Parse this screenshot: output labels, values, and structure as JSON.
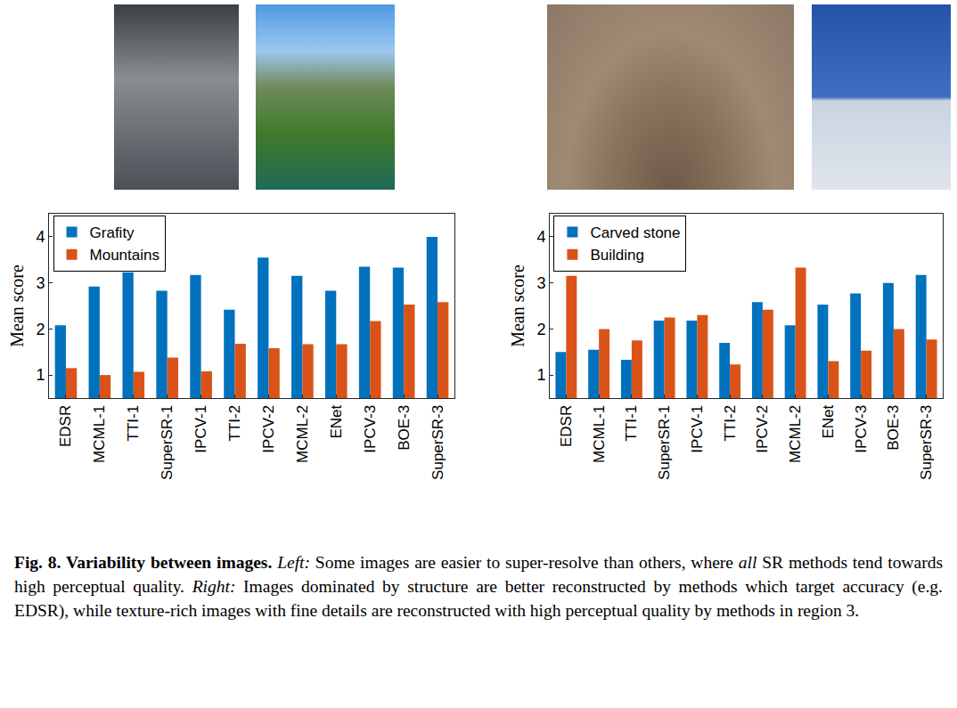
{
  "chart_data": [
    {
      "type": "bar",
      "y_label": "Mean score",
      "categories": [
        "EDSR",
        "MCML-1",
        "TTI-1",
        "SuperSR-1",
        "IPCV-1",
        "TTI-2",
        "IPCV-2",
        "MCML-2",
        "ENet",
        "IPCV-3",
        "BOE-3",
        "SuperSR-3"
      ],
      "series": [
        {
          "name": "Grafity",
          "color": "#0072bd",
          "values": [
            2.08,
            2.92,
            3.23,
            2.83,
            3.17,
            2.42,
            3.55,
            3.15,
            2.83,
            3.35,
            3.33,
            4.0
          ]
        },
        {
          "name": "Mountains",
          "color": "#d95319",
          "values": [
            1.15,
            1.0,
            1.07,
            1.38,
            1.08,
            1.68,
            1.58,
            1.67,
            1.67,
            2.17,
            2.53,
            2.58
          ]
        }
      ],
      "ylim": [
        0.5,
        4.5
      ],
      "yticks": [
        1,
        2,
        3,
        4
      ],
      "grid": false,
      "legend": "upper left"
    },
    {
      "type": "bar",
      "y_label": "Mean score",
      "categories": [
        "EDSR",
        "MCML-1",
        "TTI-1",
        "SuperSR-1",
        "IPCV-1",
        "TTI-2",
        "IPCV-2",
        "MCML-2",
        "ENet",
        "IPCV-3",
        "BOE-3",
        "SuperSR-3"
      ],
      "series": [
        {
          "name": "Carved stone",
          "color": "#0072bd",
          "values": [
            1.5,
            1.55,
            1.33,
            2.18,
            2.18,
            1.7,
            2.58,
            2.08,
            2.53,
            2.77,
            3.0,
            3.17
          ]
        },
        {
          "name": "Building",
          "color": "#d95319",
          "values": [
            3.15,
            2.0,
            1.75,
            2.25,
            2.3,
            1.23,
            2.42,
            3.33,
            1.3,
            1.53,
            2.0,
            1.77
          ]
        }
      ],
      "ylim": [
        0.5,
        4.5
      ],
      "yticks": [
        1,
        2,
        3,
        4
      ],
      "grid": false,
      "legend": "upper left"
    }
  ],
  "caption": {
    "label": "Fig. 8.",
    "title": "Variability between images.",
    "left": {
      "label": "Left:",
      "before": "Some images are easier to super-resolve than others, where ",
      "emphasis": "all",
      "after": " SR methods tend towards high perceptual quality."
    },
    "right": {
      "label": "Right:",
      "text": "Images dominated by structure are better reconstructed by methods which target accuracy (e.g. EDSR), while texture-rich images with fine details are reconstructed with high perceptual quality by methods in region 3."
    }
  }
}
